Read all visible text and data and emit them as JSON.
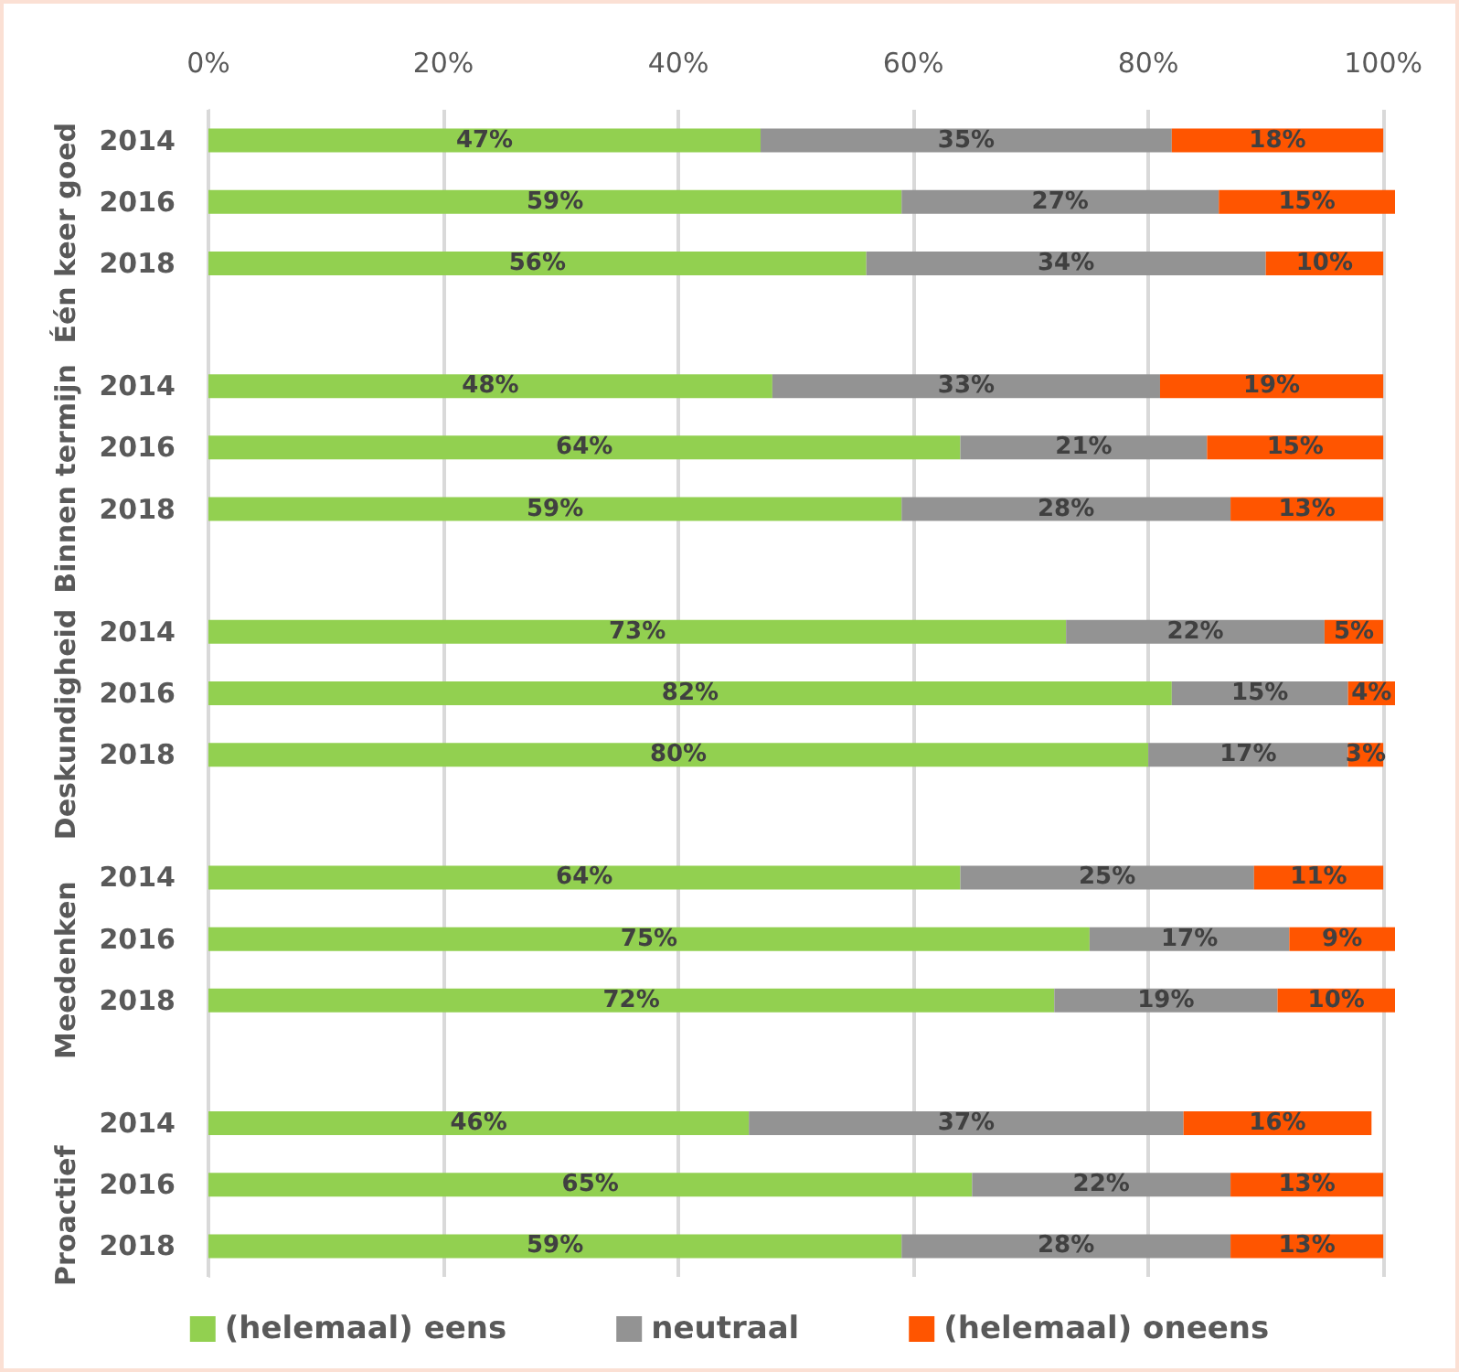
{
  "chart_data": {
    "type": "bar",
    "orientation": "horizontal",
    "stacked": true,
    "categories": [
      "2014",
      "2016",
      "2018",
      null,
      "2014",
      "2016",
      "2018",
      null,
      "2014",
      "2016",
      "2018",
      null,
      "2014",
      "2016",
      "2018",
      null,
      "2014",
      "2016",
      "2018"
    ],
    "series": [
      {
        "name": "(helemaal) eens",
        "color": "#92d050",
        "values": [
          47,
          59,
          56,
          null,
          48,
          64,
          59,
          null,
          73,
          82,
          80,
          null,
          64,
          75,
          72,
          null,
          46,
          65,
          59
        ],
        "value_labels": [
          "47%",
          "59%",
          "56%",
          null,
          "48%",
          "64%",
          "59%",
          null,
          "73%",
          "82%",
          "80%",
          null,
          "64%",
          "75%",
          "72%",
          null,
          "46%",
          "65%",
          "59%"
        ]
      },
      {
        "name": "neutraal",
        "color": "#939393",
        "values": [
          35,
          27,
          34,
          null,
          33,
          21,
          28,
          null,
          22,
          15,
          17,
          null,
          25,
          17,
          19,
          null,
          37,
          22,
          28
        ],
        "value_labels": [
          "35%",
          "27%",
          "34%",
          null,
          "33%",
          "21%",
          "28%",
          null,
          "22%",
          "15%",
          "17%",
          null,
          "25%",
          "17%",
          "19%",
          null,
          "37%",
          "22%",
          "28%"
        ]
      },
      {
        "name": "(helemaal) oneens",
        "color": "#ff5500",
        "values": [
          18,
          15,
          10,
          null,
          19,
          15,
          13,
          null,
          5,
          4,
          3,
          null,
          11,
          9,
          10,
          null,
          16,
          13,
          13
        ],
        "value_labels": [
          "18%",
          "15%",
          "10%",
          null,
          "19%",
          "15%",
          "13%",
          null,
          "5%",
          "4%",
          "3%",
          null,
          "11%",
          "9%",
          "10%",
          null,
          "16%",
          "13%",
          "13%"
        ]
      }
    ],
    "annotations": [
      "Één keer goed",
      "Binnen termijn",
      "Deskundigheid",
      "Meedenken",
      "Proactief"
    ],
    "xlim": [
      0,
      101
    ],
    "xticks": [
      {
        "value": 0,
        "label": "0%"
      },
      {
        "value": 20,
        "label": "20%"
      },
      {
        "value": 40,
        "label": "40%"
      },
      {
        "value": 60,
        "label": "60%"
      },
      {
        "value": 80,
        "label": "80%"
      },
      {
        "value": 100,
        "label": "100%"
      }
    ],
    "grid": "x",
    "legend": "bottom"
  }
}
